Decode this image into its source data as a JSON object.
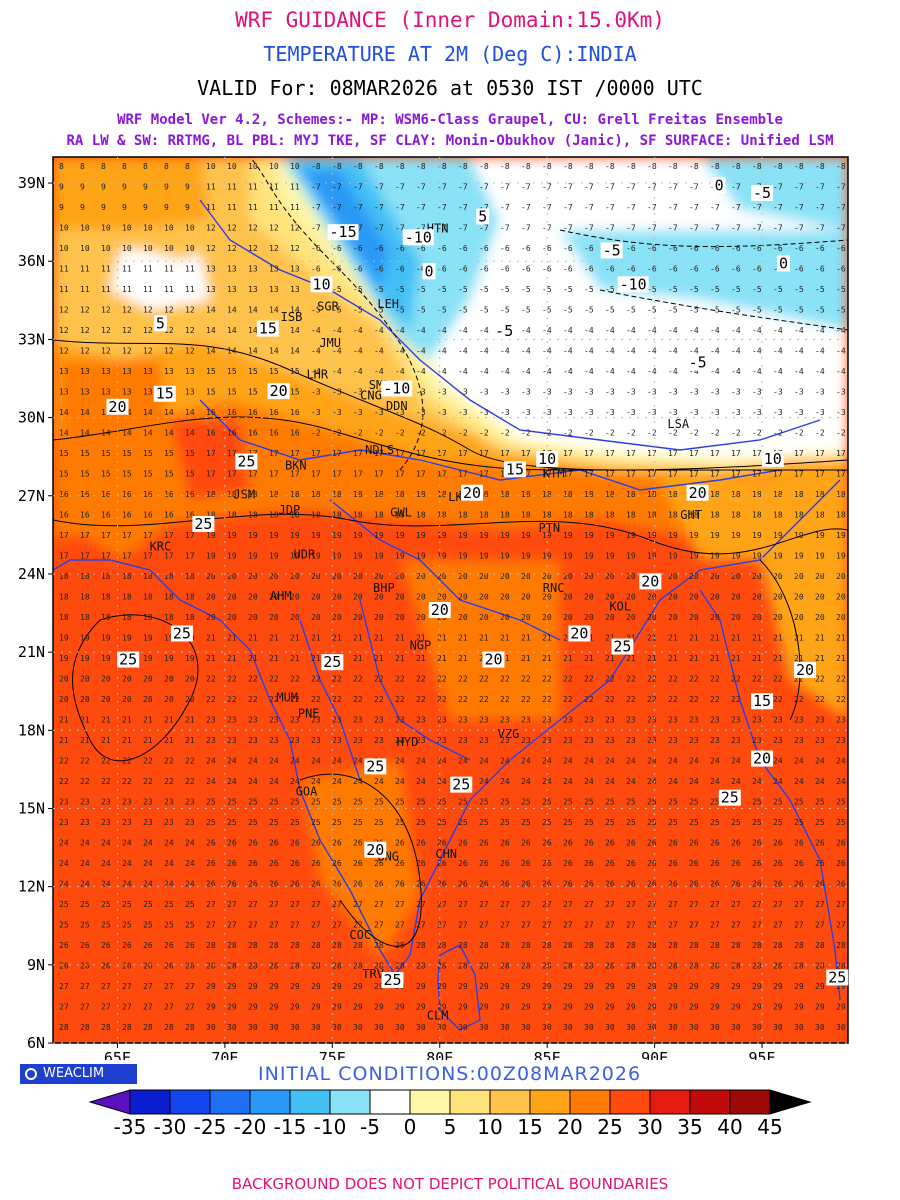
{
  "header": {
    "title": "WRF GUIDANCE (Inner Domain:15.0Km)",
    "subtitle": "TEMPERATURE AT 2M (Deg C):INDIA",
    "valid": "VALID For: 08MAR2026 at 0530 IST /0000 UTC",
    "model_line1": "WRF Model Ver 4.2, Schemes:- MP: WSM6-Class Graupel, CU: Grell Freitas Ensemble",
    "model_line2": "RA LW & SW: RRTMG, BL PBL: MYJ TKE, SF CLAY: Monin-Obukhov (Janic), SF SURFACE: Unified LSM"
  },
  "map": {
    "lon_range": [
      62,
      99
    ],
    "lat_range": [
      6,
      40
    ],
    "lon_ticks": [
      {
        "v": 65,
        "label": "65E"
      },
      {
        "v": 70,
        "label": "70E"
      },
      {
        "v": 75,
        "label": "75E"
      },
      {
        "v": 80,
        "label": "80E"
      },
      {
        "v": 85,
        "label": "85E"
      },
      {
        "v": 90,
        "label": "90E"
      },
      {
        "v": 95,
        "label": "95E"
      }
    ],
    "lat_ticks": [
      {
        "v": 6,
        "label": "6N"
      },
      {
        "v": 9,
        "label": "9N"
      },
      {
        "v": 12,
        "label": "12N"
      },
      {
        "v": 15,
        "label": "15N"
      },
      {
        "v": 18,
        "label": "18N"
      },
      {
        "v": 21,
        "label": "21N"
      },
      {
        "v": 24,
        "label": "24N"
      },
      {
        "v": 27,
        "label": "27N"
      },
      {
        "v": 30,
        "label": "30N"
      },
      {
        "v": 33,
        "label": "33N"
      },
      {
        "v": 36,
        "label": "36N"
      },
      {
        "v": 39,
        "label": "39N"
      }
    ],
    "cities": [
      {
        "name": "SGR",
        "lon": 74.8,
        "lat": 34.1
      },
      {
        "name": "LEH",
        "lon": 77.6,
        "lat": 34.2
      },
      {
        "name": "JMU",
        "lon": 74.9,
        "lat": 32.7
      },
      {
        "name": "SML",
        "lon": 77.2,
        "lat": 31.1
      },
      {
        "name": "CNG",
        "lon": 76.8,
        "lat": 30.7
      },
      {
        "name": "DDN",
        "lon": 78.0,
        "lat": 30.3
      },
      {
        "name": "NDLS",
        "lon": 77.2,
        "lat": 28.6
      },
      {
        "name": "BKN",
        "lon": 73.3,
        "lat": 28.0
      },
      {
        "name": "JSM",
        "lon": 70.9,
        "lat": 26.9
      },
      {
        "name": "JDP",
        "lon": 73.0,
        "lat": 26.3
      },
      {
        "name": "UDR",
        "lon": 73.7,
        "lat": 24.6
      },
      {
        "name": "AHM",
        "lon": 72.6,
        "lat": 23.0
      },
      {
        "name": "BHP",
        "lon": 77.4,
        "lat": 23.3
      },
      {
        "name": "LKN",
        "lon": 80.9,
        "lat": 26.8
      },
      {
        "name": "GWL",
        "lon": 78.2,
        "lat": 26.2
      },
      {
        "name": "PTN",
        "lon": 85.1,
        "lat": 25.6
      },
      {
        "name": "RNC",
        "lon": 85.3,
        "lat": 23.3
      },
      {
        "name": "KOL",
        "lon": 88.4,
        "lat": 22.6
      },
      {
        "name": "GHT",
        "lon": 91.7,
        "lat": 26.1
      },
      {
        "name": "NGP",
        "lon": 79.1,
        "lat": 21.1
      },
      {
        "name": "MUM",
        "lon": 72.9,
        "lat": 19.1
      },
      {
        "name": "PNE",
        "lon": 73.9,
        "lat": 18.5
      },
      {
        "name": "HYD",
        "lon": 78.5,
        "lat": 17.4
      },
      {
        "name": "VZG",
        "lon": 83.2,
        "lat": 17.7
      },
      {
        "name": "GOA",
        "lon": 73.8,
        "lat": 15.5
      },
      {
        "name": "BNG",
        "lon": 77.6,
        "lat": 13.0
      },
      {
        "name": "CHN",
        "lon": 80.3,
        "lat": 13.1
      },
      {
        "name": "COC",
        "lon": 76.3,
        "lat": 10.0
      },
      {
        "name": "TRV",
        "lon": 76.9,
        "lat": 8.5
      },
      {
        "name": "CLM",
        "lon": 79.9,
        "lat": 6.9
      },
      {
        "name": "KTM",
        "lon": 85.3,
        "lat": 27.7
      },
      {
        "name": "LSA",
        "lon": 91.1,
        "lat": 29.6
      },
      {
        "name": "HTN",
        "lon": 79.9,
        "lat": 37.1
      },
      {
        "name": "ISB",
        "lon": 73.1,
        "lat": 33.7
      },
      {
        "name": "KRC",
        "lon": 67.0,
        "lat": 24.9
      },
      {
        "name": "LHR",
        "lon": 74.3,
        "lat": 31.5
      }
    ],
    "contour_labels": [
      {
        "t": "-15",
        "lon": 75.5,
        "lat": 37.0
      },
      {
        "t": "-10",
        "lon": 79.0,
        "lat": 36.8
      },
      {
        "t": "-10",
        "lon": 89.0,
        "lat": 35.0
      },
      {
        "t": "-10",
        "lon": 78.0,
        "lat": 31.0
      },
      {
        "t": "-5",
        "lon": 83.0,
        "lat": 33.2
      },
      {
        "t": "-5",
        "lon": 92.0,
        "lat": 32.0
      },
      {
        "t": "-5",
        "lon": 88.0,
        "lat": 36.3
      },
      {
        "t": "-5",
        "lon": 95.0,
        "lat": 38.5
      },
      {
        "t": "0",
        "lon": 79.5,
        "lat": 35.5
      },
      {
        "t": "0",
        "lon": 93.0,
        "lat": 38.8
      },
      {
        "t": "0",
        "lon": 96.0,
        "lat": 35.8
      },
      {
        "t": "5",
        "lon": 82.0,
        "lat": 37.6
      },
      {
        "t": "5",
        "lon": 67.0,
        "lat": 33.5
      },
      {
        "t": "10",
        "lon": 74.5,
        "lat": 35.0
      },
      {
        "t": "10",
        "lon": 85.0,
        "lat": 28.3
      },
      {
        "t": "10",
        "lon": 95.5,
        "lat": 28.3
      },
      {
        "t": "15",
        "lon": 72.0,
        "lat": 33.3
      },
      {
        "t": "15",
        "lon": 83.5,
        "lat": 27.9
      },
      {
        "t": "15",
        "lon": 67.2,
        "lat": 30.8
      },
      {
        "t": "15",
        "lon": 95.0,
        "lat": 19.0
      },
      {
        "t": "20",
        "lon": 65.0,
        "lat": 30.3
      },
      {
        "t": "20",
        "lon": 72.5,
        "lat": 30.9
      },
      {
        "t": "20",
        "lon": 81.5,
        "lat": 27.0
      },
      {
        "t": "20",
        "lon": 80.0,
        "lat": 22.5
      },
      {
        "t": "20",
        "lon": 82.5,
        "lat": 20.6
      },
      {
        "t": "20",
        "lon": 92.0,
        "lat": 27.0
      },
      {
        "t": "20",
        "lon": 97.0,
        "lat": 20.2
      },
      {
        "t": "20",
        "lon": 95.0,
        "lat": 16.8
      },
      {
        "t": "20",
        "lon": 77.0,
        "lat": 13.3
      },
      {
        "t": "20",
        "lon": 89.8,
        "lat": 23.6
      },
      {
        "t": "20",
        "lon": 86.5,
        "lat": 21.6
      },
      {
        "t": "25",
        "lon": 65.5,
        "lat": 20.6
      },
      {
        "t": "25",
        "lon": 68.0,
        "lat": 21.6
      },
      {
        "t": "25",
        "lon": 75.0,
        "lat": 20.5
      },
      {
        "t": "25",
        "lon": 88.5,
        "lat": 21.1
      },
      {
        "t": "25",
        "lon": 77.0,
        "lat": 16.5
      },
      {
        "t": "25",
        "lon": 81.0,
        "lat": 15.8
      },
      {
        "t": "25",
        "lon": 93.5,
        "lat": 15.3
      },
      {
        "t": "25",
        "lon": 77.8,
        "lat": 8.3
      },
      {
        "t": "25",
        "lon": 98.5,
        "lat": 8.4
      },
      {
        "t": "25",
        "lon": 69.0,
        "lat": 25.8
      },
      {
        "t": "25",
        "lon": 71.0,
        "lat": 28.2
      }
    ]
  },
  "colorbar": {
    "labels": [
      "-35",
      "-30",
      "-25",
      "-20",
      "-15",
      "-10",
      "-5",
      "0",
      "5",
      "10",
      "15",
      "20",
      "25",
      "30",
      "35",
      "40",
      "45"
    ],
    "colors": {
      "lt_neg35": "#5a0fc0",
      "neg35_neg30": "#0c1cd0",
      "neg30_neg25": "#1346ee",
      "neg25_neg20": "#1f6ff5",
      "neg20_neg15": "#2a98f6",
      "neg15_neg10": "#43bff5",
      "neg10_neg5": "#8ae2f7",
      "neg5_0": "#ffffff",
      "0_5": "#fff6a8",
      "5_10": "#ffe27a",
      "10_15": "#ffc24c",
      "15_20": "#ffa416",
      "20_25": "#ff7a00",
      "25_30": "#ff4a0e",
      "30_35": "#e51a10",
      "35_40": "#c30a0a",
      "40_45": "#9e0808",
      "gt_45": "#000000"
    }
  },
  "branding": {
    "logo_text": "WEACLIM",
    "initial_conditions": "INITIAL CONDITIONS:00Z08MAR2026",
    "footer": "BACKGROUND DOES NOT DEPICT POLITICAL BOUNDARIES"
  }
}
